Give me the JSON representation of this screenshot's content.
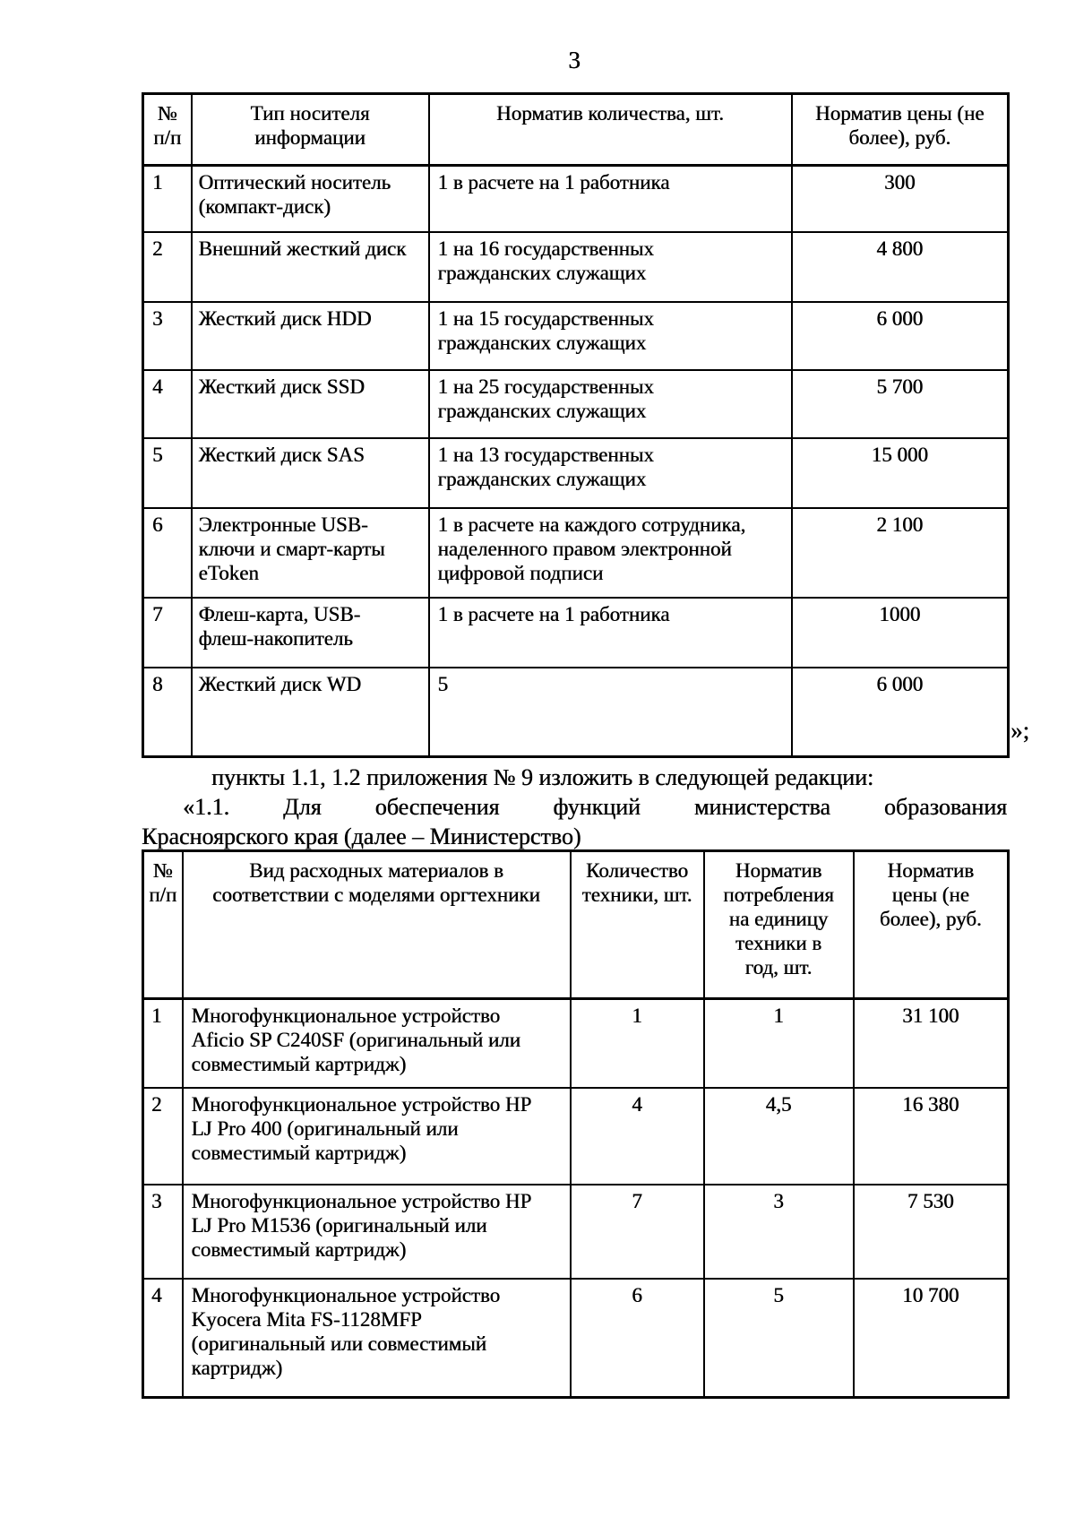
{
  "page": {
    "number": "3",
    "closing_mark": "»;"
  },
  "paragraph": {
    "line1": "пункты 1.1, 1.2 приложения № 9 изложить в следующей редакции:",
    "line2": "«1.1. Для обеспечения функций министерства образования",
    "line3": "Красноярского края (далее – Министерство)"
  },
  "table1": {
    "headers": [
      "№\nп/п",
      "Тип носителя\nинформации",
      "Норматив количества, шт.",
      "Норматив цены (не\nболее), руб."
    ],
    "rows": [
      [
        "1",
        "Оптический носитель\n(компакт-диск)",
        "1 в расчете на 1 работника",
        "300"
      ],
      [
        "2",
        "Внешний жесткий диск",
        "1 на 16 государственных\nгражданских служащих",
        "4 800"
      ],
      [
        "3",
        "Жесткий диск HDD",
        "1 на 15 государственных\nгражданских служащих",
        "6 000"
      ],
      [
        "4",
        "Жесткий диск SSD",
        "1 на 25 государственных\nгражданских служащих",
        "5 700"
      ],
      [
        "5",
        "Жесткий диск SAS",
        "1 на 13 государственных\nгражданских служащих",
        "15 000"
      ],
      [
        "6",
        "Электронные USB-\nключи и смарт-карты\neToken",
        "1 в расчете на каждого сотрудника,\nнаделенного правом электронной\nцифровой подписи",
        "2 100"
      ],
      [
        "7",
        "Флеш-карта, USB-\nфлеш-накопитель",
        "1 в расчете на 1 работника",
        "1000"
      ],
      [
        "8",
        "Жесткий диск WD",
        "5",
        "6 000"
      ]
    ]
  },
  "table2": {
    "headers": [
      "№\nп/п",
      "Вид расходных материалов в\nсоответствии с моделями оргтехники",
      "Количество\nтехники, шт.",
      "Норматив\nпотребления\nна единицу\nтехники в\nгод, шт.",
      "Норматив\nцены (не\nболее), руб."
    ],
    "rows": [
      [
        "1",
        "Многофункциональное устройство\nAficio SP C240SF (оригинальный или\nсовместимый картридж)",
        "1",
        "1",
        "31 100"
      ],
      [
        "2",
        "Многофункциональное устройство HP\nLJ Pro 400 (оригинальный или\nсовместимый картридж)",
        "4",
        "4,5",
        "16 380"
      ],
      [
        "3",
        "Многофункциональное устройство HP\nLJ Pro M1536 (оригинальный или\nсовместимый картридж)",
        "7",
        "3",
        "7 530"
      ],
      [
        "4",
        "Многофункциональное устройство\nKyocera Mita FS-1128MFP\n(оригинальный или совместимый\nкартридж)",
        "6",
        "5",
        "10 700"
      ]
    ]
  }
}
